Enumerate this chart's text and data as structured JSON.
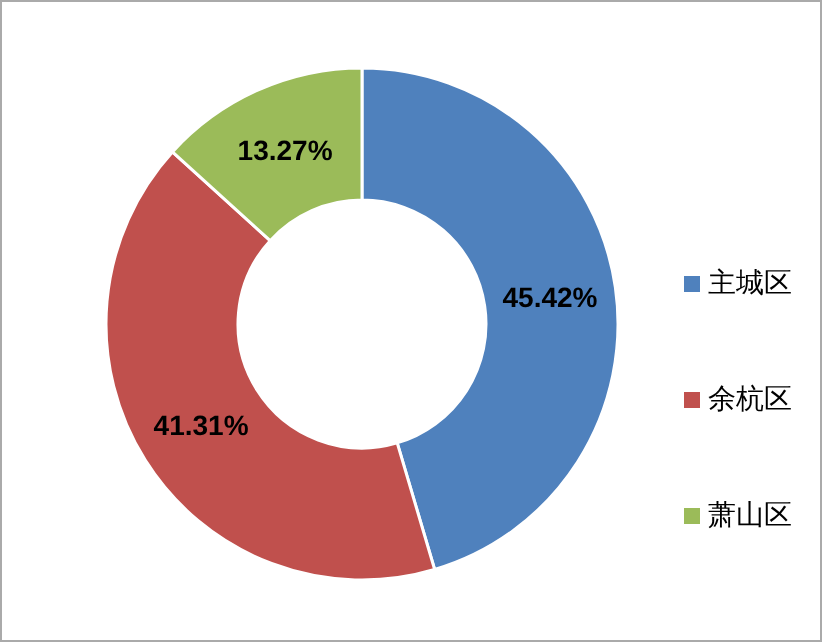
{
  "chart_data": {
    "type": "donut",
    "categories": [
      "主城区",
      "余杭区",
      "萧山区"
    ],
    "values": [
      45.42,
      41.31,
      13.27
    ],
    "colors": [
      "#4f81bd",
      "#c0504d",
      "#9bbb59"
    ],
    "value_labels": [
      "45.42%",
      "41.31%",
      "13.27%"
    ],
    "legend": "right"
  }
}
